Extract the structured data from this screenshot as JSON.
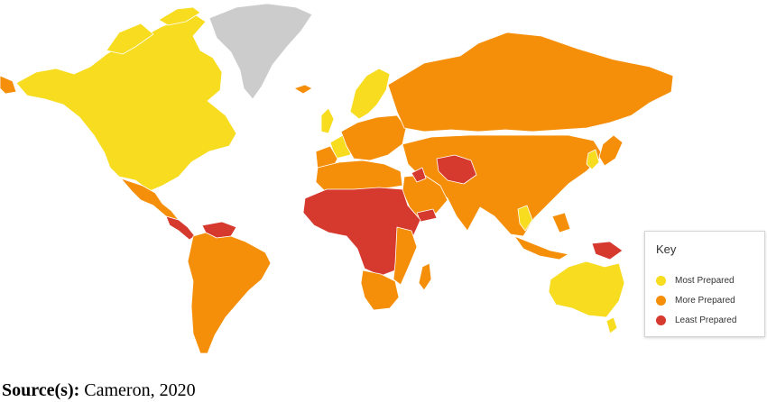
{
  "legend": {
    "title": "Key",
    "items": [
      {
        "label": "Most Prepared",
        "color": "#f7dc1f"
      },
      {
        "label": "More Prepared",
        "color": "#f58f0a"
      },
      {
        "label": "Least Prepared",
        "color": "#d63a2f"
      }
    ]
  },
  "colors": {
    "no_data": "#cccccc",
    "borders": "#ffffff",
    "background": "#ffffff"
  },
  "source": {
    "label": "Source(s):",
    "text": " Cameron, 2020"
  }
}
